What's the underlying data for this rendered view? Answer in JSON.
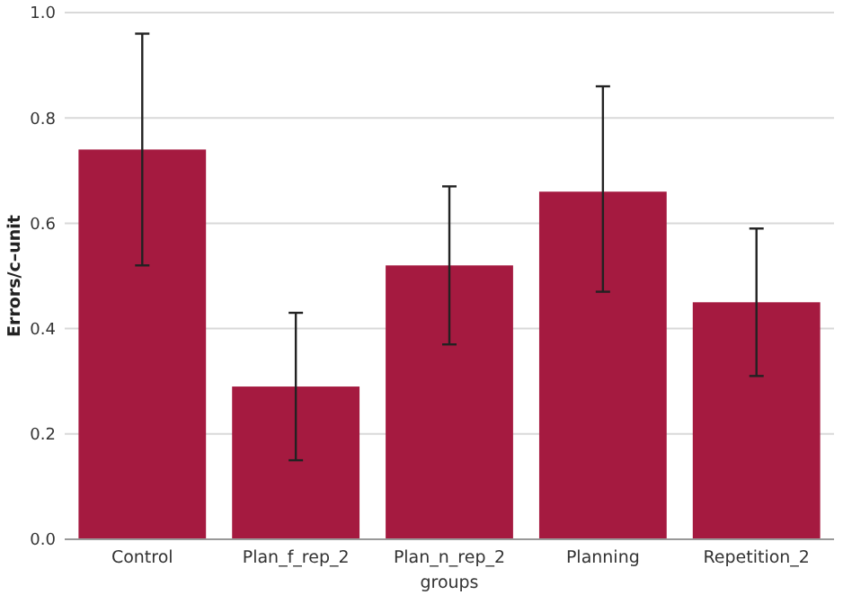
{
  "chart_data": {
    "type": "bar",
    "xlabel": "groups",
    "ylabel": "Errors/c–unit",
    "categories": [
      "Control",
      "Plan_f_rep_2",
      "Plan_n_rep_2",
      "Planning",
      "Repetition_2"
    ],
    "values": [
      0.74,
      0.29,
      0.52,
      0.66,
      0.45
    ],
    "errors": [
      [
        0.52,
        0.96
      ],
      [
        0.15,
        0.43
      ],
      [
        0.37,
        0.67
      ],
      [
        0.47,
        0.86
      ],
      [
        0.31,
        0.59
      ]
    ],
    "color": "#a51a40",
    "ylim": [
      0,
      1
    ],
    "yticks": [
      {
        "value": 0,
        "label": "0.0"
      },
      0.2,
      0.4,
      0.6,
      0.8,
      {
        "value": 1,
        "label": "1.0"
      }
    ],
    "grid": "y"
  }
}
